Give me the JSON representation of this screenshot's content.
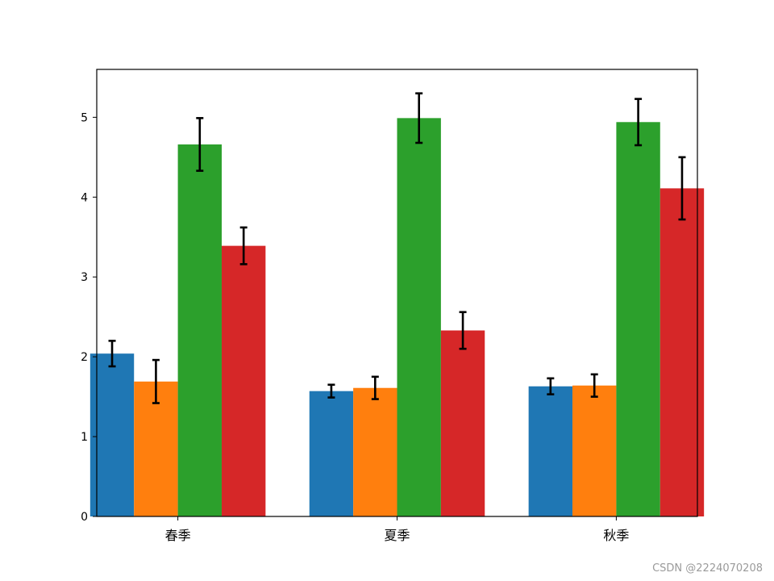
{
  "chart_data": {
    "type": "bar",
    "title": "",
    "xlabel": "",
    "ylabel": "",
    "categories": [
      "春季",
      "夏季",
      "秋季"
    ],
    "ylim": [
      0,
      5.6
    ],
    "yticks": [
      0,
      1,
      2,
      3,
      4,
      5
    ],
    "grid": false,
    "series": [
      {
        "color": "#1f77b4",
        "values": [
          2.04,
          1.57,
          1.63
        ],
        "errors": [
          0.16,
          0.08,
          0.1
        ]
      },
      {
        "color": "#ff7f0e",
        "values": [
          1.69,
          1.61,
          1.64
        ],
        "errors": [
          0.27,
          0.14,
          0.14
        ]
      },
      {
        "color": "#2ca02c",
        "values": [
          4.66,
          4.99,
          4.94
        ],
        "errors": [
          0.33,
          0.31,
          0.29
        ]
      },
      {
        "color": "#d62728",
        "values": [
          3.39,
          2.33,
          4.11
        ],
        "errors": [
          0.23,
          0.23,
          0.39
        ]
      }
    ]
  },
  "watermark": "CSDN @2224070208"
}
